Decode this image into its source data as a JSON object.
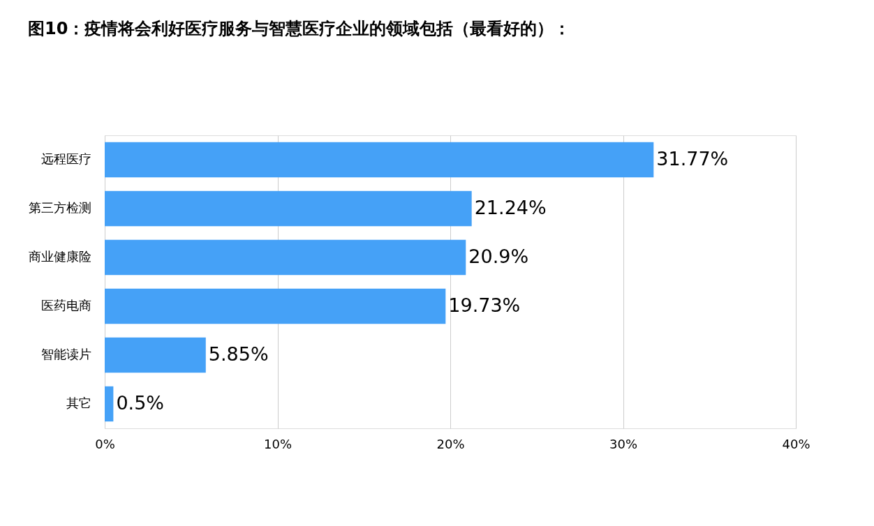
{
  "chart_data": {
    "type": "bar",
    "orientation": "horizontal",
    "title": "图10：疫情将会利好医疗服务与智慧医疗企业的领域包括（最看好的）：",
    "categories": [
      "远程医疗",
      "第三方检测",
      "商业健康险",
      "医药电商",
      "智能读片",
      "其它"
    ],
    "values": [
      31.77,
      21.24,
      20.9,
      19.73,
      5.85,
      0.5
    ],
    "value_labels": [
      "31.77%",
      "21.24%",
      "20.9%",
      "19.73%",
      "5.85%",
      "0.5%"
    ],
    "color": "#45a1f7",
    "xlim": [
      0,
      40
    ],
    "xticks": [
      {
        "value": 0,
        "label": "0%"
      },
      {
        "value": 10,
        "label": "10%"
      },
      {
        "value": 20,
        "label": "20%"
      },
      {
        "value": 30,
        "label": "30%"
      },
      {
        "value": 40,
        "label": "40%"
      }
    ],
    "grid": "x"
  }
}
